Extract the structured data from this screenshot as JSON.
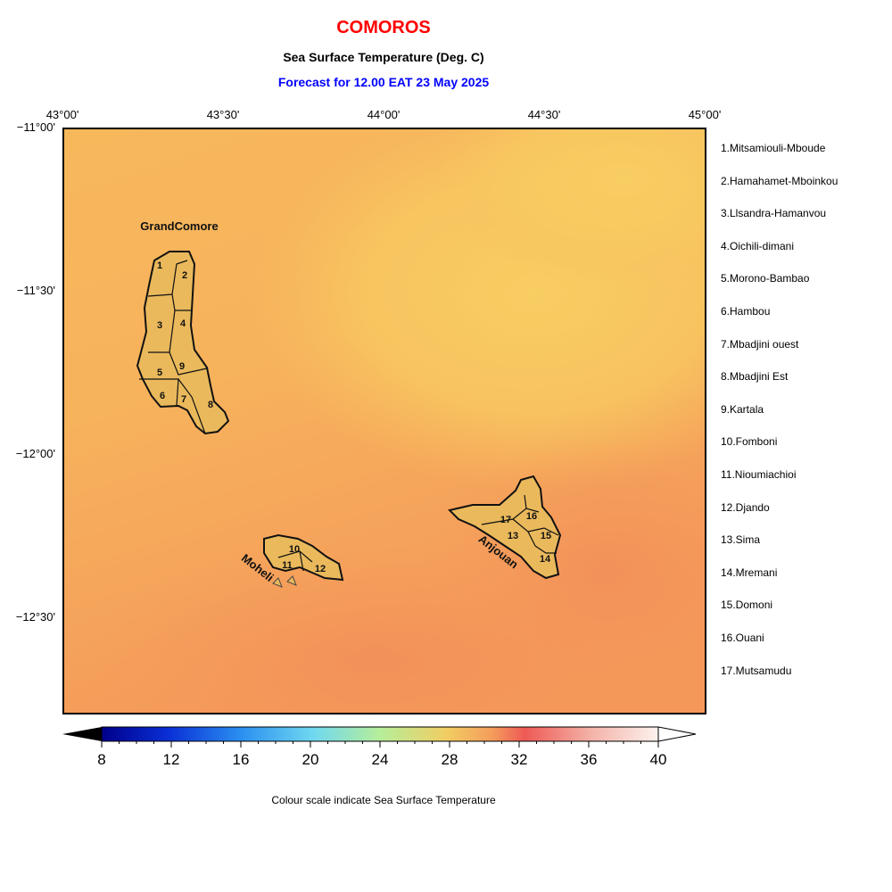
{
  "header": {
    "title": "COMOROS",
    "subtitle": "Sea Surface Temperature (Deg. C)",
    "forecast": "Forecast for  12.00 EAT 23 May 2025"
  },
  "axes": {
    "lon_labels": [
      "43°00'",
      "43°30'",
      "44°00'",
      "44°30'",
      "45°00'"
    ],
    "lat_labels": [
      "−11°00'",
      "−11°30'",
      "−12°00'",
      "−12°30'"
    ],
    "lon_range": [
      43.0,
      45.0
    ],
    "lat_range": [
      -11.0,
      -12.8
    ]
  },
  "islands": {
    "grand_comore": "GrandComore",
    "moheli": "Moheli",
    "anjouan": "Anjouan"
  },
  "region_numbers": [
    "1",
    "2",
    "3",
    "4",
    "5",
    "6",
    "7",
    "8",
    "9",
    "10",
    "11",
    "12",
    "13",
    "14",
    "15",
    "16",
    "17"
  ],
  "legend": [
    "1.Mitsamiouli-Mboude",
    "2.Hamahamet-Mboinkou",
    "3.Llsandra-Hamanvou",
    "4.Oichili-dimani",
    "5.Morono-Bambao",
    "6.Hambou",
    "7.Mbadjini ouest",
    "8.Mbadjini Est",
    "9.Kartala",
    "10.Fomboni",
    "11.Nioumiachioi",
    "12.Djando",
    "13.Sima",
    "14.Mremani",
    "15.Domoni",
    "16.Ouani",
    "17.Mutsamudu"
  ],
  "colorbar": {
    "ticks": [
      "8",
      "12",
      "16",
      "20",
      "24",
      "28",
      "32",
      "36",
      "40"
    ],
    "min": 8,
    "max": 40,
    "caption": "Colour scale indicate Sea Surface Temperature"
  },
  "colors": {
    "sst_warm": "#f7c45f",
    "sst_mid": "#f6ad5a",
    "sst_hot": "#f4995a",
    "land": "#eab95c"
  }
}
